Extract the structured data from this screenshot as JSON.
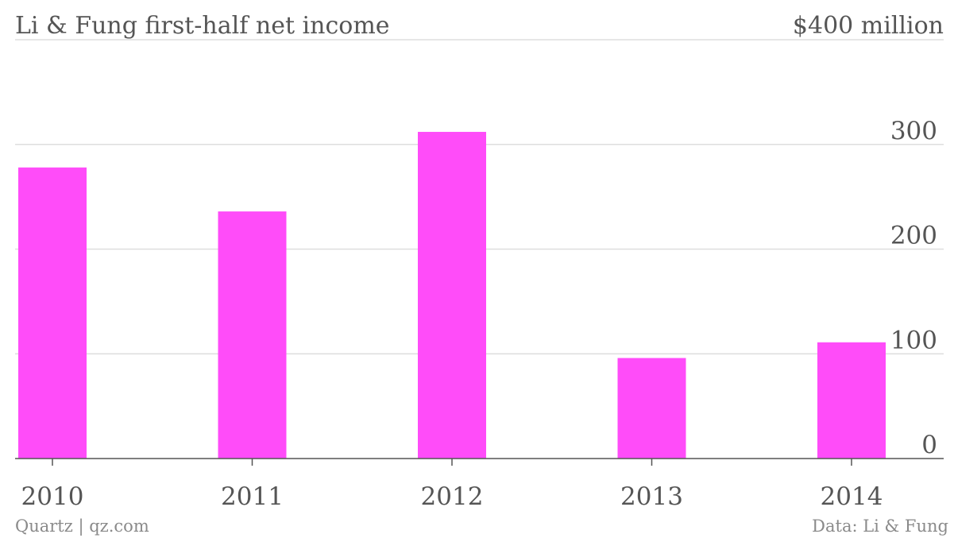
{
  "chart_data": {
    "type": "bar",
    "title": "Li & Fung first-half net income",
    "unit_label": "$400 million",
    "categories": [
      "2010",
      "2011",
      "2012",
      "2013",
      "2014"
    ],
    "values": [
      278,
      236,
      312,
      96,
      111
    ],
    "ylim": [
      0,
      400
    ],
    "yticks": [
      {
        "value": 0,
        "label": "0"
      },
      {
        "value": 100,
        "label": "100"
      },
      {
        "value": 200,
        "label": "200"
      },
      {
        "value": 300,
        "label": "300"
      }
    ],
    "grid": true,
    "bar_color": "#ff4cf9",
    "source_left": "Quartz | qz.com",
    "source_right": "Data: Li & Fung"
  }
}
